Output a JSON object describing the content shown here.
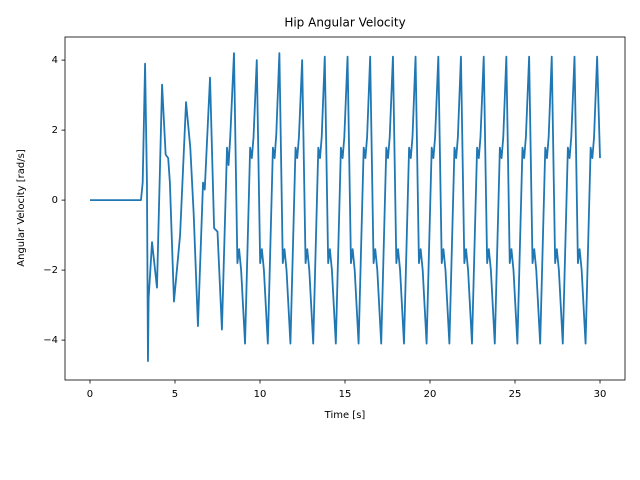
{
  "chart_data": {
    "type": "line",
    "title": "Hip Angular Velocity",
    "x_label": "Time [s]",
    "y_label": "Angular Velocity [rad/s]",
    "color": "#1f77b4",
    "xlim": [
      -1.47,
      31.47
    ],
    "ylim": [
      -5.14,
      4.66
    ],
    "xticks": [
      0,
      5,
      10,
      15,
      20,
      25,
      30
    ],
    "yticks": [
      {
        "value": -4,
        "label": "−4"
      },
      {
        "value": -2,
        "label": "−2"
      },
      0,
      2,
      4
    ],
    "x": [
      0,
      3.0,
      3.1,
      3.24,
      3.35,
      3.41,
      3.45,
      3.65,
      3.94,
      4.24,
      4.45,
      4.6,
      4.7,
      4.94,
      5.3,
      5.65,
      5.9,
      6.1,
      6.35,
      6.65,
      6.75,
      7.06,
      7.3,
      7.5,
      7.76,
      8.06,
      8.15,
      8.25,
      8.47,
      8.67,
      8.77,
      8.89,
      9.12,
      9.42,
      9.52,
      9.62,
      9.81,
      10.01,
      10.11,
      10.23,
      10.46,
      10.76,
      10.86,
      10.96,
      11.14,
      11.34,
      11.44,
      11.56,
      11.79,
      12.09,
      12.19,
      12.29,
      12.48,
      12.68,
      12.78,
      12.9,
      13.13,
      13.43,
      13.53,
      13.63,
      13.81,
      14.01,
      14.11,
      14.23,
      14.46,
      14.76,
      14.86,
      14.96,
      15.15,
      15.35,
      15.45,
      15.57,
      15.8,
      16.1,
      16.2,
      16.3,
      16.48,
      16.68,
      16.78,
      16.9,
      17.13,
      17.43,
      17.53,
      17.63,
      17.82,
      18.02,
      18.12,
      18.24,
      18.47,
      18.77,
      18.87,
      18.97,
      19.15,
      19.35,
      19.45,
      19.57,
      19.8,
      20.1,
      20.2,
      20.3,
      20.49,
      20.69,
      20.79,
      20.91,
      21.14,
      21.44,
      21.54,
      21.64,
      21.82,
      22.02,
      22.12,
      22.24,
      22.47,
      22.77,
      22.87,
      22.97,
      23.16,
      23.36,
      23.46,
      23.58,
      23.81,
      24.11,
      24.21,
      24.31,
      24.49,
      24.69,
      24.79,
      24.91,
      25.14,
      25.44,
      25.54,
      25.64,
      25.83,
      26.03,
      26.13,
      26.25,
      26.48,
      26.78,
      26.88,
      26.98,
      27.16,
      27.36,
      27.46,
      27.58,
      27.81,
      28.11,
      28.21,
      28.31,
      28.5,
      28.7,
      28.8,
      28.92,
      29.15,
      29.45,
      29.55,
      29.65,
      29.83,
      30.0
    ],
    "values": [
      0,
      0,
      0.5,
      3.9,
      0.5,
      -4.6,
      -2.8,
      -1.2,
      -2.5,
      3.3,
      1.3,
      1.2,
      0.5,
      -2.9,
      -1.0,
      2.8,
      1.5,
      -0.4,
      -3.6,
      0.5,
      0.3,
      3.5,
      -0.8,
      -0.9,
      -3.7,
      1.5,
      1.0,
      1.8,
      4.2,
      -1.8,
      -1.4,
      -2.0,
      -4.1,
      1.5,
      1.2,
      1.8,
      4.0,
      -1.8,
      -1.4,
      -2.0,
      -4.1,
      1.5,
      1.2,
      1.9,
      4.2,
      -1.8,
      -1.4,
      -2.0,
      -4.1,
      1.5,
      1.2,
      1.8,
      4.0,
      -1.8,
      -1.4,
      -2.0,
      -4.1,
      1.5,
      1.2,
      1.8,
      4.1,
      -1.8,
      -1.4,
      -2.0,
      -4.1,
      1.5,
      1.2,
      1.8,
      4.1,
      -1.8,
      -1.4,
      -2.0,
      -4.1,
      1.5,
      1.2,
      1.8,
      4.1,
      -1.8,
      -1.4,
      -2.0,
      -4.1,
      1.5,
      1.2,
      1.8,
      4.1,
      -1.8,
      -1.4,
      -2.0,
      -4.1,
      1.5,
      1.2,
      1.8,
      4.1,
      -1.8,
      -1.4,
      -2.0,
      -4.1,
      1.5,
      1.2,
      1.8,
      4.1,
      -1.8,
      -1.4,
      -2.0,
      -4.1,
      1.5,
      1.2,
      1.8,
      4.1,
      -1.8,
      -1.4,
      -2.0,
      -4.1,
      1.5,
      1.2,
      1.8,
      4.1,
      -1.8,
      -1.4,
      -2.0,
      -4.1,
      1.5,
      1.2,
      1.8,
      4.1,
      -1.8,
      -1.4,
      -2.0,
      -4.1,
      1.5,
      1.2,
      1.8,
      4.1,
      -1.8,
      -1.4,
      -2.0,
      -4.1,
      1.5,
      1.2,
      1.8,
      4.1,
      -1.8,
      -1.4,
      -2.0,
      -4.1,
      1.5,
      1.2,
      1.8,
      4.1,
      -1.8,
      -1.4,
      -2.0,
      -4.1,
      1.5,
      1.2,
      1.8,
      4.1,
      1.2
    ]
  }
}
